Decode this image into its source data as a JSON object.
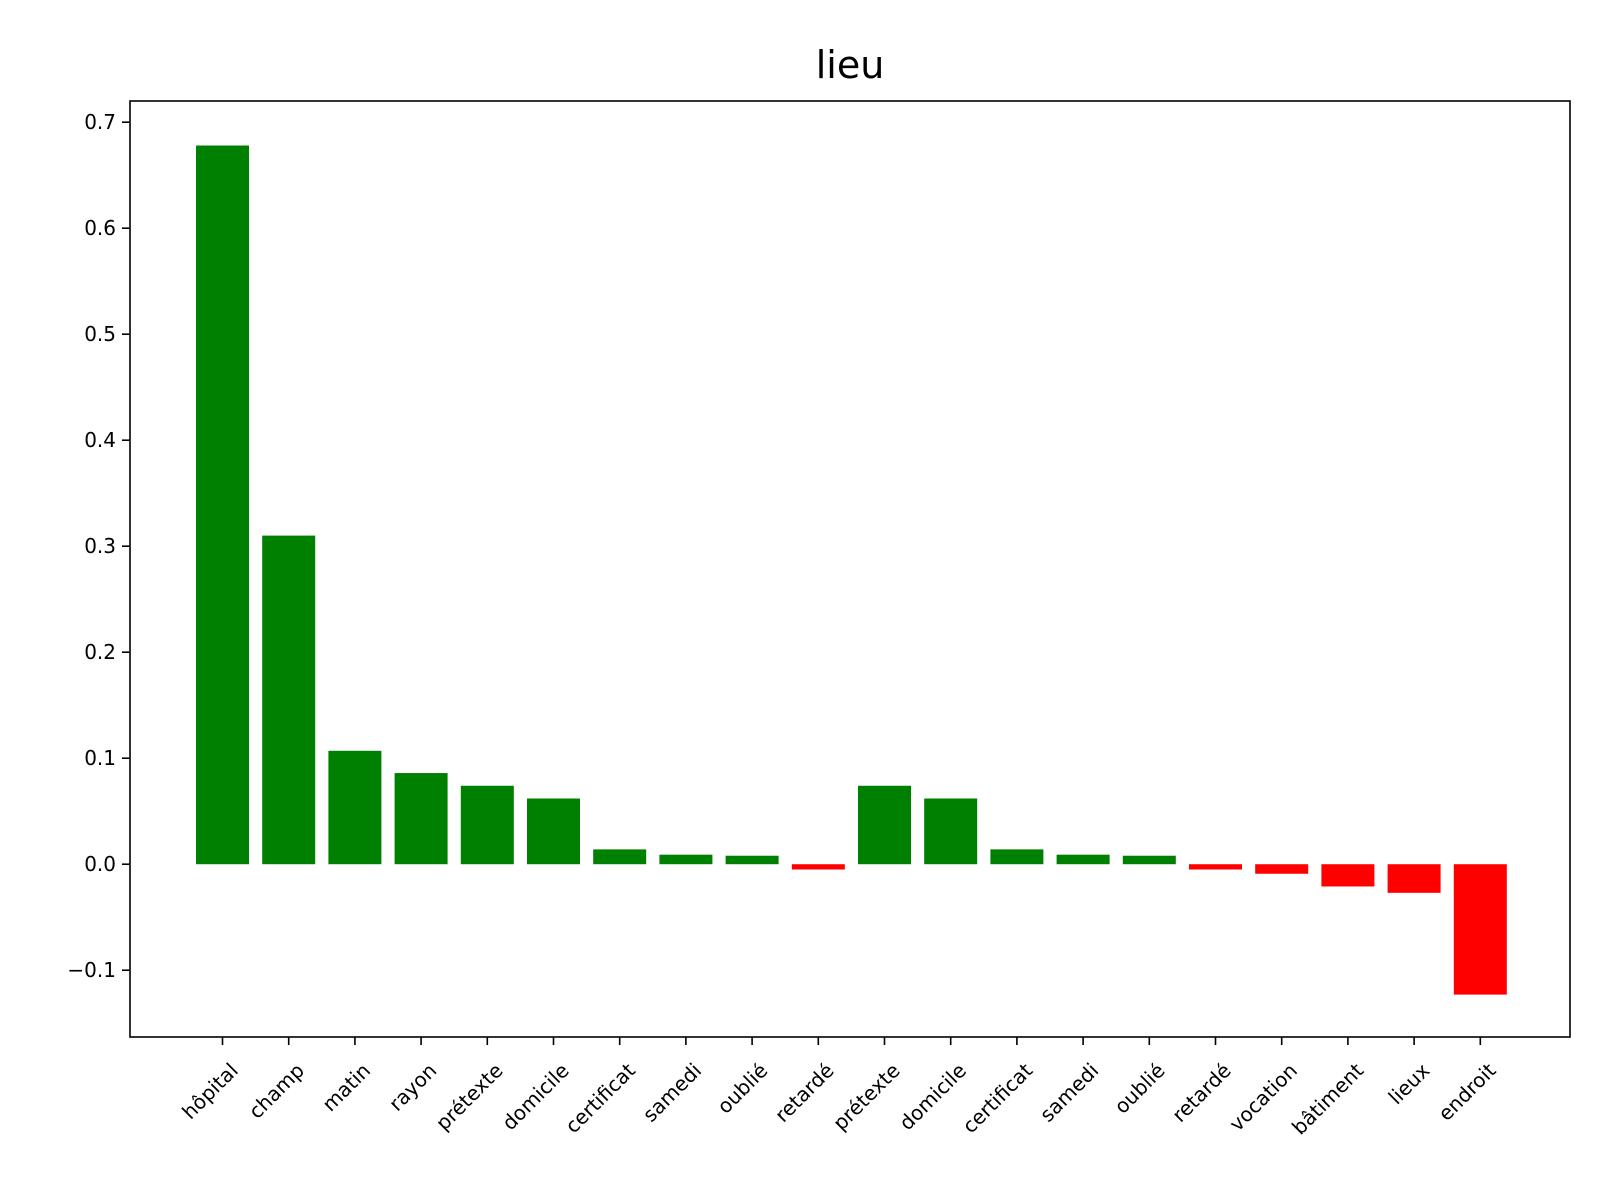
{
  "chart_data": {
    "type": "bar",
    "title": "lieu",
    "xlabel": "",
    "ylabel": "",
    "categories": [
      "hôpital",
      "champ",
      "matin",
      "rayon",
      "prétexte",
      "domicile",
      "certificat",
      "samedi",
      "oublié",
      "retardé",
      "prétexte",
      "domicile",
      "certificat",
      "samedi",
      "oublié",
      "retardé",
      "vocation",
      "bâtiment",
      "lieux",
      "endroit"
    ],
    "values": [
      0.678,
      0.31,
      0.107,
      0.086,
      0.074,
      0.062,
      0.014,
      0.009,
      0.008,
      -0.005,
      0.074,
      0.062,
      0.014,
      0.009,
      0.008,
      -0.005,
      -0.009,
      -0.021,
      -0.027,
      -0.123
    ],
    "ylim": [
      -0.163,
      0.72
    ],
    "yticks": [
      -0.1,
      0.0,
      0.1,
      0.2,
      0.3,
      0.4,
      0.5,
      0.6,
      0.7
    ],
    "ytick_labels": [
      "−0.1",
      "0.0",
      "0.1",
      "0.2",
      "0.3",
      "0.4",
      "0.5",
      "0.6",
      "0.7"
    ],
    "grid": false,
    "colors": {
      "positive": "#008000",
      "negative": "#ff0000"
    }
  }
}
